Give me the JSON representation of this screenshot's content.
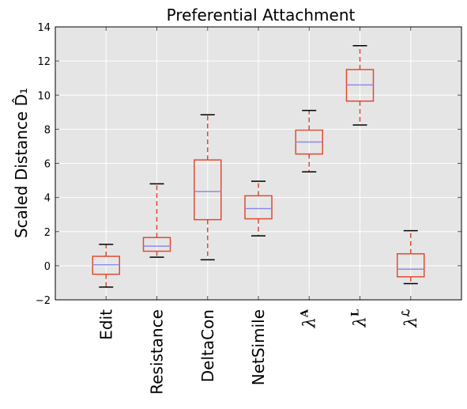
{
  "chart_data": {
    "type": "box",
    "title": "Preferential Attachment",
    "ylabel": "Scaled Distance D̂₁",
    "ylim": [
      -2,
      14
    ],
    "yticks": [
      -2,
      0,
      2,
      4,
      6,
      8,
      10,
      12,
      14
    ],
    "ytick_labels": [
      "−2",
      "0",
      "2",
      "4",
      "6",
      "8",
      "10",
      "12",
      "14"
    ],
    "grid": true,
    "categories": [
      "Edit",
      "Resistance",
      "DeltaCon",
      "NetSimile",
      "λA",
      "λL",
      "λℒ"
    ],
    "boxes": [
      {
        "label": "Edit",
        "whisker_low": -1.25,
        "q1": -0.5,
        "median": 0.05,
        "q3": 0.55,
        "whisker_high": 1.25
      },
      {
        "label": "Resistance",
        "whisker_low": 0.5,
        "q1": 0.85,
        "median": 1.15,
        "q3": 1.65,
        "whisker_high": 4.8
      },
      {
        "label": "DeltaCon",
        "whisker_low": 0.35,
        "q1": 2.7,
        "median": 4.35,
        "q3": 6.2,
        "whisker_high": 8.85
      },
      {
        "label": "NetSimile",
        "whisker_low": 1.75,
        "q1": 2.75,
        "median": 3.35,
        "q3": 4.1,
        "whisker_high": 4.95
      },
      {
        "label": "λA",
        "whisker_low": 5.5,
        "q1": 6.55,
        "median": 7.25,
        "q3": 7.95,
        "whisker_high": 9.1
      },
      {
        "label": "λL",
        "whisker_low": 8.25,
        "q1": 9.65,
        "median": 10.6,
        "q3": 11.5,
        "whisker_high": 12.9
      },
      {
        "label": "λℒ",
        "whisker_low": -1.05,
        "q1": -0.65,
        "median": -0.2,
        "q3": 0.7,
        "whisker_high": 2.05
      }
    ],
    "colors": {
      "background": "#e5e5e5",
      "grid": "#ffffff",
      "box": "#e24a33",
      "median": "#8c8ce8",
      "cap": "#000000"
    }
  }
}
